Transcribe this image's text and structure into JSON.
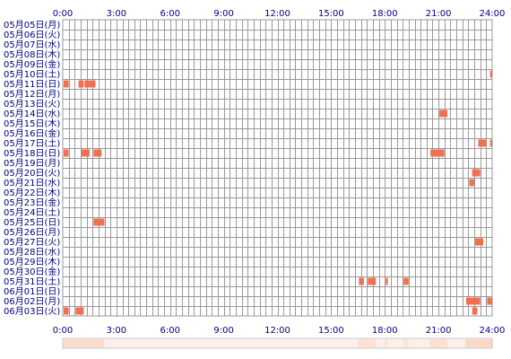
{
  "chart_data": {
    "type": "heatmap",
    "x_ticks": [
      "0:00",
      "3:00",
      "6:00",
      "9:00",
      "12:00",
      "15:00",
      "18:00",
      "21:00",
      "24:00"
    ],
    "x_range_hours": [
      0,
      24
    ],
    "rows": [
      "05月05日(月)",
      "05月06日(火)",
      "05月07日(水)",
      "05月08日(木)",
      "05月09日(金)",
      "05月10日(土)",
      "05月11日(日)",
      "05月12日(月)",
      "05月13日(火)",
      "05月14日(水)",
      "05月15日(木)",
      "05月16日(金)",
      "05月17日(土)",
      "05月18日(日)",
      "05月19日(月)",
      "05月20日(火)",
      "05月21日(水)",
      "05月22日(木)",
      "05月23日(金)",
      "05月24日(土)",
      "05月25日(日)",
      "05月26日(月)",
      "05月27日(火)",
      "05月28日(水)",
      "05月29日(木)",
      "05月30日(金)",
      "05月31日(土)",
      "06月01日(日)",
      "06月02日(月)",
      "06月03日(火)"
    ],
    "grid": true,
    "cell_minutes": 20,
    "events": [
      {
        "row": 5,
        "start": 23.83,
        "end": 24.0
      },
      {
        "row": 6,
        "start": 0.0,
        "end": 0.33
      },
      {
        "row": 6,
        "start": 0.83,
        "end": 1.17
      },
      {
        "row": 6,
        "start": 1.17,
        "end": 1.83
      },
      {
        "row": 9,
        "start": 21.0,
        "end": 21.5
      },
      {
        "row": 12,
        "start": 23.17,
        "end": 23.67
      },
      {
        "row": 12,
        "start": 23.83,
        "end": 24.0
      },
      {
        "row": 13,
        "start": 0.0,
        "end": 0.33
      },
      {
        "row": 13,
        "start": 1.0,
        "end": 1.5
      },
      {
        "row": 13,
        "start": 1.67,
        "end": 2.17
      },
      {
        "row": 13,
        "start": 20.5,
        "end": 21.33
      },
      {
        "row": 15,
        "start": 22.83,
        "end": 23.33
      },
      {
        "row": 16,
        "start": 22.67,
        "end": 23.0
      },
      {
        "row": 20,
        "start": 1.67,
        "end": 2.33
      },
      {
        "row": 22,
        "start": 23.0,
        "end": 23.5
      },
      {
        "row": 26,
        "start": 16.5,
        "end": 16.83
      },
      {
        "row": 26,
        "start": 17.0,
        "end": 17.5
      },
      {
        "row": 26,
        "start": 18.0,
        "end": 18.17
      },
      {
        "row": 26,
        "start": 19.0,
        "end": 19.33
      },
      {
        "row": 28,
        "start": 22.5,
        "end": 23.33
      },
      {
        "row": 28,
        "start": 23.67,
        "end": 24.0
      },
      {
        "row": 29,
        "start": 0.0,
        "end": 0.33
      },
      {
        "row": 29,
        "start": 0.67,
        "end": 1.17
      },
      {
        "row": 29,
        "start": 22.83,
        "end": 23.17
      }
    ],
    "summary_strip": [
      {
        "start": 0.0,
        "end": 2.33,
        "opacity": 0.35
      },
      {
        "start": 16.5,
        "end": 17.5,
        "opacity": 0.25
      },
      {
        "start": 18.0,
        "end": 18.17,
        "opacity": 0.2
      },
      {
        "start": 19.0,
        "end": 19.33,
        "opacity": 0.2
      },
      {
        "start": 20.5,
        "end": 21.5,
        "opacity": 0.3
      },
      {
        "start": 22.5,
        "end": 24.0,
        "opacity": 0.45
      }
    ]
  },
  "colors": {
    "grid": "#999999",
    "background": "#ffffff",
    "event": "#f07050",
    "label": "#000080",
    "strip_base": "#fdf0ea",
    "strip_fill": "#f8b898"
  }
}
